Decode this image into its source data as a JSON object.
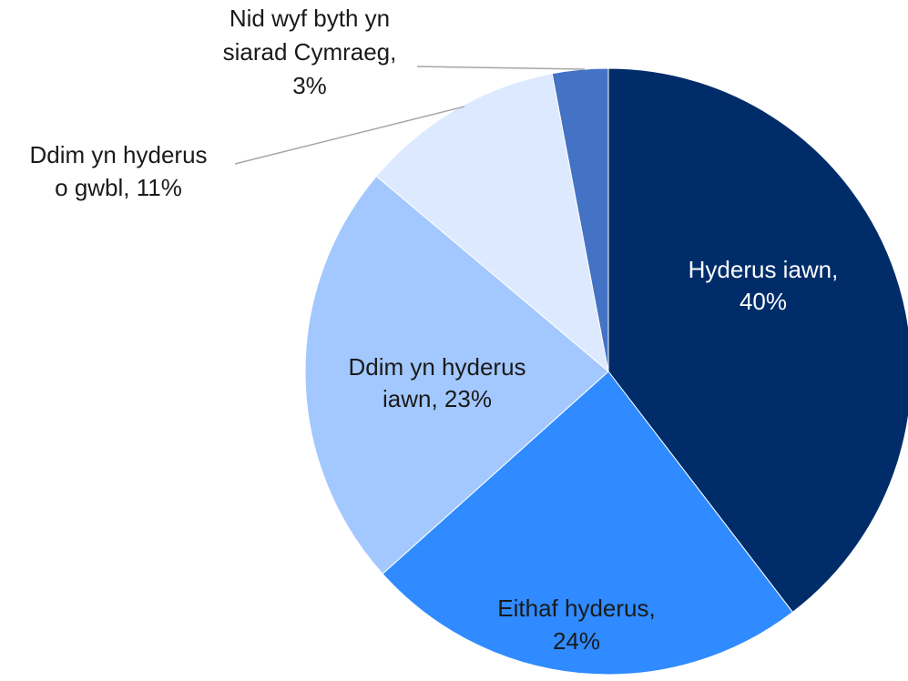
{
  "chart_data": {
    "type": "pie",
    "values": [
      40,
      24,
      23,
      11,
      3
    ],
    "value_labels": [
      [
        "Hyderus iawn,",
        "40%"
      ],
      [
        "Eithaf hyderus,",
        "24%"
      ],
      [
        "Ddim yn hyderus",
        "iawn, 23%"
      ],
      [
        "Ddim yn hyderus",
        "o gwbl, 11%"
      ],
      [
        "Nid wyf byth yn",
        "siarad Cymraeg,",
        "3%"
      ]
    ],
    "colors": [
      "#002d6a",
      "#2f8bff",
      "#a3c8ff",
      "#dde9ff",
      "#4472c4"
    ],
    "label_colors": [
      "#ffffff",
      "#1a1a1a",
      "#1a1a1a",
      "#1a1a1a",
      "#1a1a1a"
    ]
  }
}
